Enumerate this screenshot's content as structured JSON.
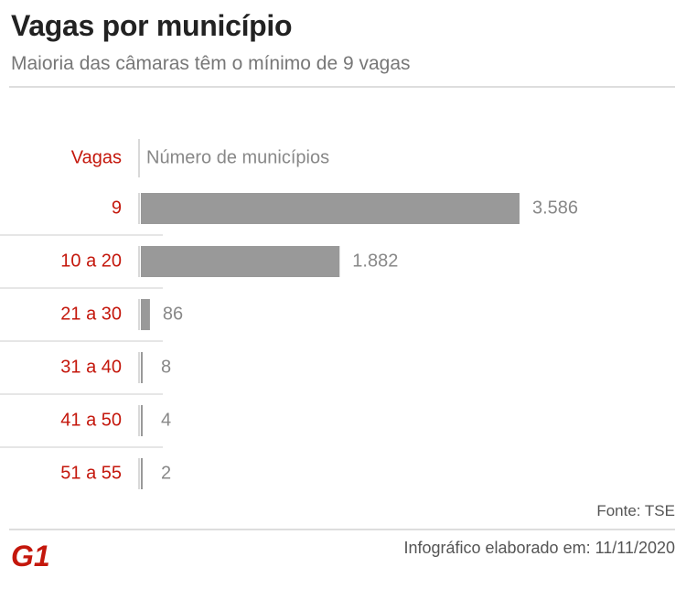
{
  "header": {
    "title": "Vagas por município",
    "subtitle": "Maioria das câmaras têm o mínimo de 9 vagas"
  },
  "chart_data": {
    "type": "bar",
    "orientation": "horizontal",
    "category_header": "Vagas",
    "value_header": "Número de municípios",
    "categories": [
      "9",
      "10 a 20",
      "21 a 30",
      "31 a 40",
      "41 a 50",
      "51 a 55"
    ],
    "values": [
      3586,
      1882,
      86,
      8,
      4,
      2
    ],
    "value_labels": [
      "3.586",
      "1.882",
      "86",
      "8",
      "4",
      "2"
    ],
    "xlim": [
      0,
      3586
    ],
    "grid": false,
    "colors": {
      "bar": "#999999",
      "category": "#c4170c",
      "value": "#888888",
      "divider": "#dddddd"
    }
  },
  "footer": {
    "source": "Fonte: TSE",
    "credit": "Infográfico elaborado em: 11/11/2020"
  },
  "logo": {
    "text": "G1",
    "color": "#c4170c"
  }
}
